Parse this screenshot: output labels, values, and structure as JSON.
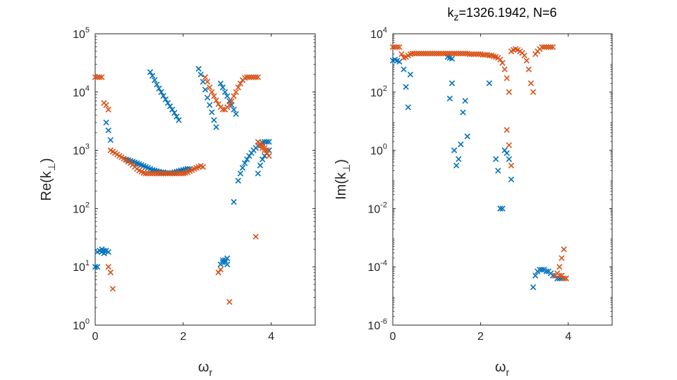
{
  "chart_data": [
    {
      "type": "scatter",
      "title": "",
      "xlabel_base": "ω",
      "xlabel_sub": "r",
      "ylabel": "Re(k⊥)",
      "ylabel_pre": "Re(k",
      "ylabel_sub": "⊥",
      "ylabel_post": ")",
      "yscale": "log",
      "xlim": [
        0,
        5
      ],
      "ylim": [
        1,
        100000
      ],
      "xticks": [
        0,
        2,
        4
      ],
      "xtick_labels": [
        "0",
        "2",
        "4"
      ],
      "yticks": [
        {
          "base": "10",
          "exp": "0"
        },
        {
          "base": "10",
          "exp": "1"
        },
        {
          "base": "10",
          "exp": "2"
        },
        {
          "base": "10",
          "exp": "3"
        },
        {
          "base": "10",
          "exp": "4"
        },
        {
          "base": "10",
          "exp": "5"
        }
      ],
      "marker": "x",
      "series": [
        {
          "name": "blue",
          "color": "#0072BD",
          "x": [
            0.05,
            0.1,
            0.15,
            0.2,
            0.25,
            0.3,
            0.0,
            0.25,
            0.3,
            0.35,
            0.7,
            0.75,
            0.8,
            0.85,
            0.9,
            0.95,
            1.0,
            1.05,
            1.1,
            1.15,
            1.2,
            1.25,
            1.3,
            1.35,
            1.4,
            1.45,
            1.5,
            1.55,
            1.6,
            1.65,
            1.7,
            1.75,
            1.8,
            1.85,
            1.9,
            1.95,
            2.0,
            2.05,
            2.1,
            2.15,
            1.25,
            1.3,
            1.35,
            1.4,
            1.45,
            1.5,
            1.55,
            1.6,
            1.65,
            1.7,
            1.75,
            1.8,
            1.85,
            1.9,
            2.35,
            2.4,
            2.45,
            2.5,
            2.55,
            2.6,
            2.65,
            2.7,
            2.75,
            2.85,
            2.9,
            2.95,
            3.0,
            3.05,
            3.1,
            3.15,
            3.2,
            3.25,
            3.3,
            3.35,
            3.4,
            3.45,
            3.5,
            3.55,
            3.6,
            3.65,
            3.7,
            3.75,
            3.8,
            3.85,
            3.9,
            3.95,
            3.7,
            3.75,
            3.8,
            3.85,
            3.9,
            3.95,
            3.15,
            2.9,
            2.95,
            3.0,
            2.85,
            2.9,
            2.95,
            3.0,
            0.05,
            0.15,
            0.2
          ],
          "y": [
            18,
            19,
            18,
            17,
            19,
            18,
            10,
            3000,
            2200,
            1500,
            700,
            680,
            660,
            640,
            620,
            600,
            580,
            560,
            540,
            520,
            500,
            480,
            460,
            450,
            440,
            430,
            420,
            420,
            410,
            410,
            410,
            410,
            420,
            430,
            440,
            450,
            460,
            470,
            480,
            480,
            22000,
            19000,
            16000,
            13500,
            11500,
            10000,
            8600,
            7500,
            6500,
            5700,
            5000,
            4400,
            3800,
            3300,
            25000,
            20000,
            15000,
            11000,
            8000,
            6000,
            4500,
            3300,
            2500,
            14000,
            12000,
            10000,
            8500,
            7000,
            6000,
            5000,
            4200,
            300,
            400,
            500,
            600,
            700,
            800,
            900,
            1000,
            1100,
            1200,
            1300,
            1350,
            1400,
            1400,
            1400,
            400,
            550,
            700,
            800,
            900,
            1000,
            130,
            13,
            12,
            11,
            11,
            12,
            13,
            14,
            10,
            20,
            19
          ]
        },
        {
          "name": "orange",
          "color": "#D95319",
          "x": [
            0.0,
            0.05,
            0.1,
            0.15,
            0.2,
            0.25,
            0.3,
            0.35,
            0.4,
            0.45,
            0.5,
            0.55,
            0.6,
            0.65,
            0.7,
            0.75,
            0.8,
            0.85,
            0.9,
            0.95,
            1.0,
            1.05,
            1.1,
            1.15,
            1.2,
            1.25,
            1.3,
            1.35,
            1.4,
            1.45,
            1.5,
            1.55,
            1.6,
            1.65,
            1.7,
            1.75,
            1.8,
            1.85,
            1.9,
            1.95,
            2.0,
            2.05,
            2.1,
            2.15,
            2.2,
            2.25,
            2.3,
            2.35,
            2.4,
            2.45,
            2.5,
            2.55,
            2.6,
            2.65,
            2.7,
            2.75,
            2.8,
            2.85,
            2.9,
            2.95,
            3.0,
            3.05,
            3.1,
            3.15,
            3.2,
            3.25,
            3.3,
            3.35,
            3.4,
            3.45,
            3.5,
            3.55,
            3.6,
            3.65,
            3.7,
            3.75,
            3.8,
            3.85,
            3.9,
            3.95,
            3.7,
            3.75,
            3.8,
            3.85,
            3.9,
            3.65,
            2.8,
            2.85,
            3.05,
            0.3,
            0.35,
            0.4
          ],
          "y": [
            18000,
            18000,
            18000,
            18000,
            6500,
            6000,
            5000,
            1000,
            950,
            900,
            850,
            800,
            760,
            720,
            680,
            640,
            600,
            560,
            520,
            480,
            450,
            430,
            410,
            400,
            400,
            400,
            400,
            400,
            400,
            400,
            400,
            400,
            400,
            400,
            400,
            400,
            400,
            400,
            400,
            400,
            400,
            410,
            420,
            440,
            460,
            480,
            500,
            520,
            540,
            520,
            18000,
            15000,
            12000,
            10000,
            8500,
            7200,
            6200,
            5500,
            5000,
            5000,
            5500,
            6000,
            7000,
            8500,
            10000,
            12000,
            14000,
            16000,
            17500,
            18000,
            18000,
            18000,
            18000,
            18000,
            18000,
            1200,
            1100,
            1000,
            900,
            800,
            1400,
            1300,
            1200,
            1100,
            1000,
            33,
            8,
            9,
            2.5,
            10,
            8,
            4.2
          ]
        }
      ]
    },
    {
      "type": "scatter",
      "title": "k_z=1326.1942, N=6",
      "title_k": "k",
      "title_k_sub": "z",
      "title_rest": "=1326.1942, N=6",
      "xlabel_base": "ω",
      "xlabel_sub": "r",
      "ylabel": "Im(k⊥)",
      "ylabel_pre": "Im(k",
      "ylabel_sub": "⊥",
      "ylabel_post": ")",
      "yscale": "log",
      "xlim": [
        0,
        5
      ],
      "ylim": [
        1e-06,
        10000
      ],
      "xticks": [
        0,
        2,
        4
      ],
      "xtick_labels": [
        "0",
        "2",
        "4"
      ],
      "yticks": [
        {
          "base": "10",
          "exp": "-6"
        },
        {
          "base": "10",
          "exp": "-4"
        },
        {
          "base": "10",
          "exp": "-2"
        },
        {
          "base": "10",
          "exp": "0"
        },
        {
          "base": "10",
          "exp": "2"
        },
        {
          "base": "10",
          "exp": "4"
        }
      ],
      "marker": "x",
      "series": [
        {
          "name": "blue",
          "color": "#0072BD",
          "x": [
            0.0,
            0.05,
            0.1,
            0.15,
            0.25,
            0.3,
            0.35,
            0.4,
            1.3,
            1.35,
            1.4,
            1.45,
            1.5,
            1.55,
            1.6,
            1.65,
            1.7,
            2.2,
            2.35,
            2.4,
            2.45,
            2.5,
            2.55,
            2.6,
            2.65,
            2.7,
            3.2,
            3.25,
            3.3,
            3.35,
            3.4,
            3.45,
            3.5,
            3.55,
            3.6,
            3.65,
            3.7,
            3.75,
            3.8,
            3.85,
            3.9,
            3.95,
            1.25,
            1.3,
            1.35
          ],
          "y": [
            1200,
            1300,
            1200,
            1100,
            600,
            150,
            30,
            400,
            60,
            200,
            1,
            0.3,
            0.5,
            1.6,
            20,
            50,
            3,
            200,
            0.5,
            0.2,
            0.01,
            0.01,
            1,
            0.8,
            0.5,
            0.1,
            2e-05,
            5e-05,
            7e-05,
            8e-05,
            8e-05,
            8e-05,
            7e-05,
            7e-05,
            6e-05,
            5e-05,
            5e-05,
            4e-05,
            4e-05,
            4e-05,
            4e-05,
            4e-05,
            1600,
            1500,
            1400
          ]
        },
        {
          "name": "orange",
          "color": "#D95319",
          "x": [
            0.0,
            0.05,
            0.1,
            0.15,
            0.2,
            0.25,
            0.3,
            0.35,
            0.4,
            0.45,
            0.5,
            0.55,
            0.6,
            0.65,
            0.7,
            0.75,
            0.8,
            0.85,
            0.9,
            0.95,
            1.0,
            1.05,
            1.1,
            1.15,
            1.2,
            1.25,
            1.3,
            1.35,
            1.4,
            1.45,
            1.5,
            1.55,
            1.6,
            1.65,
            1.7,
            1.75,
            1.8,
            1.85,
            1.9,
            1.95,
            2.0,
            2.05,
            2.1,
            2.15,
            2.2,
            2.25,
            2.3,
            2.35,
            2.4,
            2.45,
            2.5,
            2.55,
            2.6,
            2.65,
            2.7,
            2.75,
            2.8,
            2.85,
            2.9,
            2.95,
            3.0,
            3.05,
            3.1,
            3.15,
            3.2,
            3.25,
            3.3,
            3.35,
            3.4,
            3.45,
            3.5,
            3.55,
            3.6,
            3.65,
            3.7,
            3.75,
            3.8,
            3.85,
            3.9,
            3.95,
            2.6,
            2.65,
            2.7,
            3.7,
            3.8,
            3.85,
            3.9
          ],
          "y": [
            3500,
            3500,
            3500,
            3500,
            2000,
            1500,
            1600,
            1800,
            2000,
            2100,
            2100,
            2100,
            2100,
            2100,
            2100,
            2100,
            2100,
            2100,
            2100,
            2100,
            2100,
            2100,
            2100,
            2100,
            2100,
            2100,
            2100,
            2100,
            2100,
            2100,
            2100,
            2100,
            2100,
            2100,
            2100,
            2000,
            2000,
            2000,
            2000,
            2000,
            2000,
            1900,
            1900,
            1900,
            1800,
            1800,
            1700,
            1600,
            1500,
            1300,
            1000,
            600,
            300,
            100,
            2500,
            2800,
            3000,
            2800,
            2500,
            2200,
            1800,
            1200,
            600,
            200,
            100,
            2000,
            2500,
            3000,
            3500,
            3500,
            3500,
            3500,
            3500,
            3500,
            5e-05,
            6e-05,
            0.0001,
            0.0002,
            0.0004,
            4e-05,
            5,
            1.5,
            0.3,
            5e-05,
            5e-05,
            5e-05,
            4e-05
          ]
        }
      ]
    }
  ]
}
